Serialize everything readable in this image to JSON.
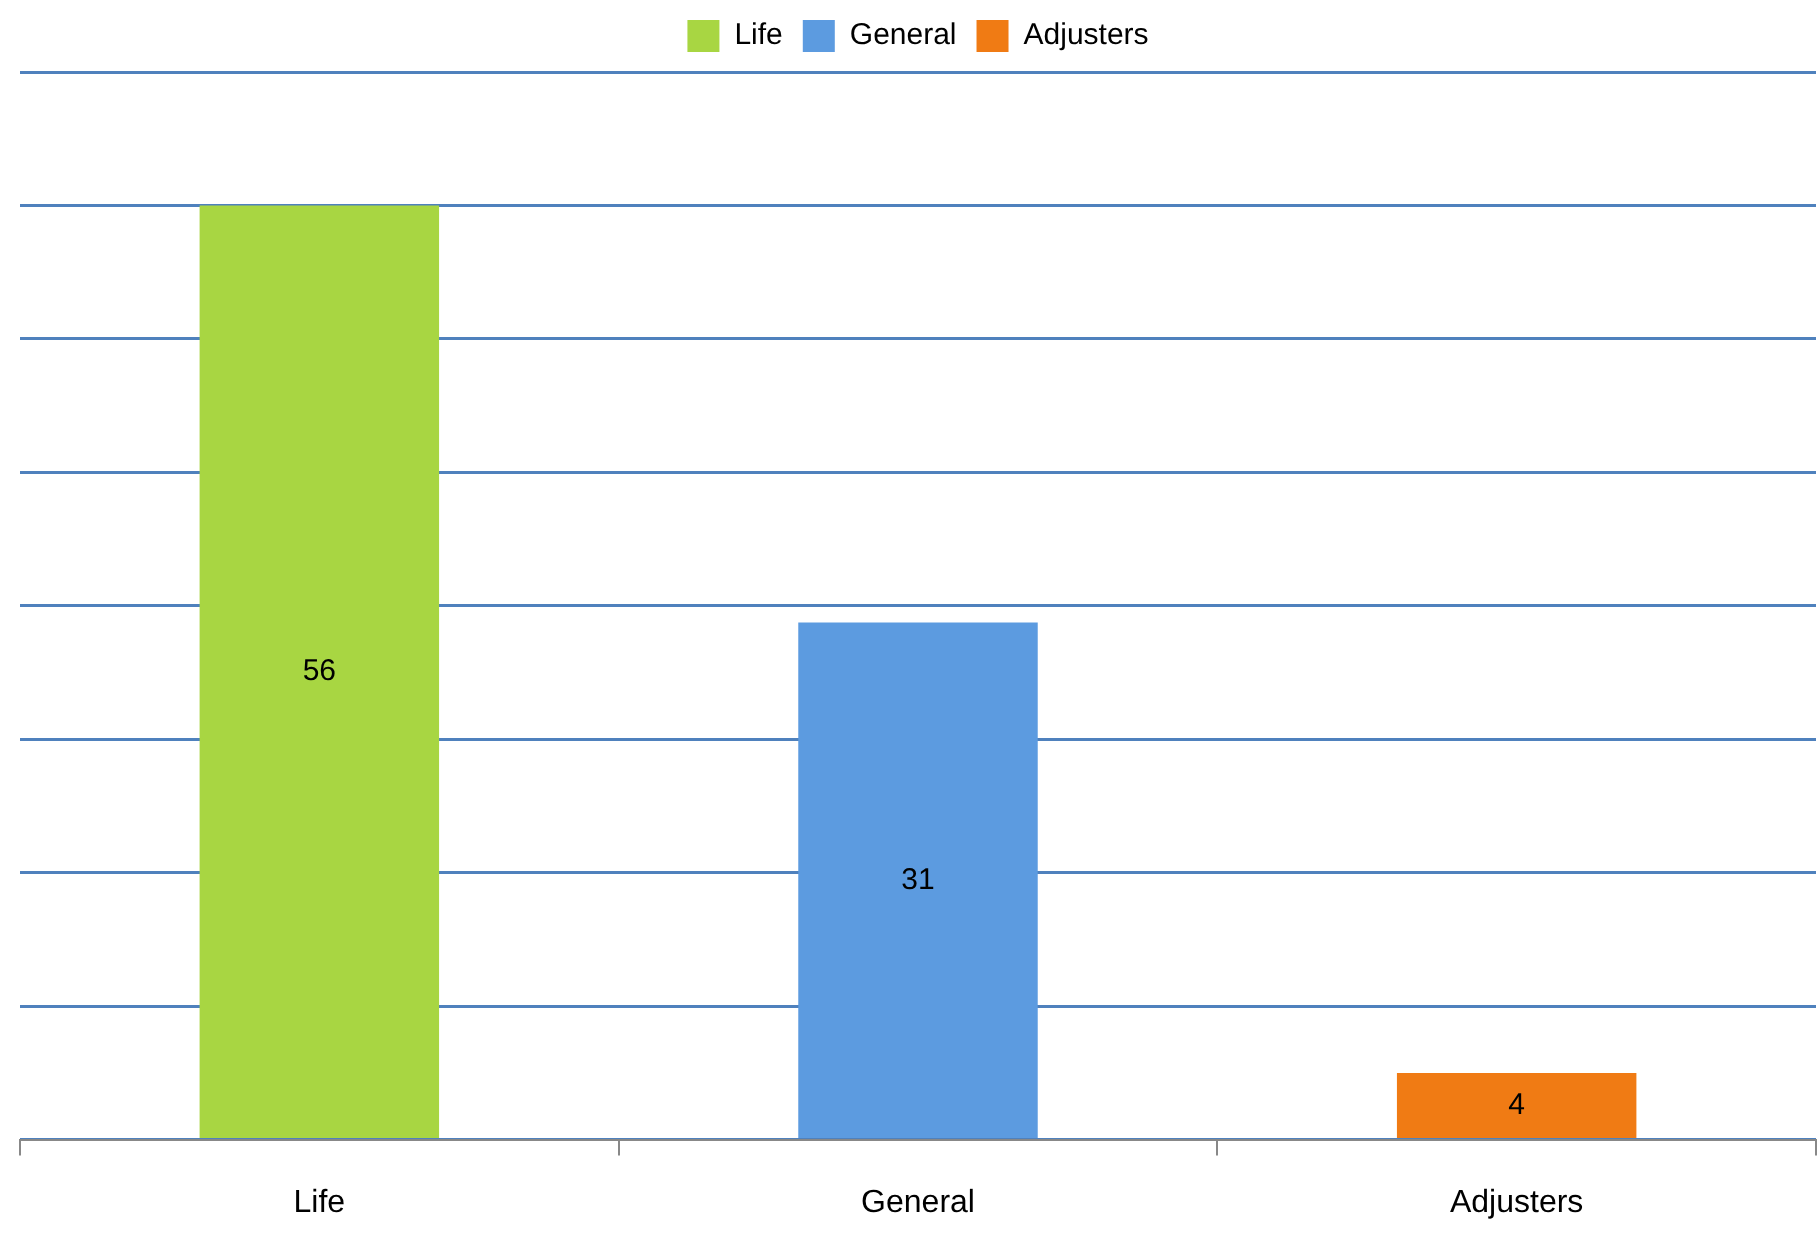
{
  "chart_data": {
    "type": "bar",
    "categories": [
      "Life",
      "General",
      "Adjusters"
    ],
    "series": [
      {
        "name": "Life",
        "color": "#a8d642",
        "values": [
          56,
          null,
          null
        ]
      },
      {
        "name": "General",
        "color": "#5c9be0",
        "values": [
          null,
          31,
          null
        ]
      },
      {
        "name": "Adjusters",
        "color": "#f07b14",
        "values": [
          null,
          null,
          4
        ]
      }
    ],
    "ylim": [
      0,
      64
    ],
    "yticks": [
      {
        "value": 0,
        "label": null
      },
      {
        "value": 8,
        "label": null
      },
      {
        "value": 16,
        "label": null
      },
      {
        "value": 24,
        "label": null
      },
      {
        "value": 32,
        "label": null
      },
      {
        "value": 40,
        "label": null
      },
      {
        "value": 48,
        "label": null
      },
      {
        "value": 56,
        "label": null
      },
      {
        "value": 64,
        "label": null
      }
    ],
    "tick_labels": "x",
    "grid": "y",
    "legend": "top",
    "data_labels": true
  }
}
